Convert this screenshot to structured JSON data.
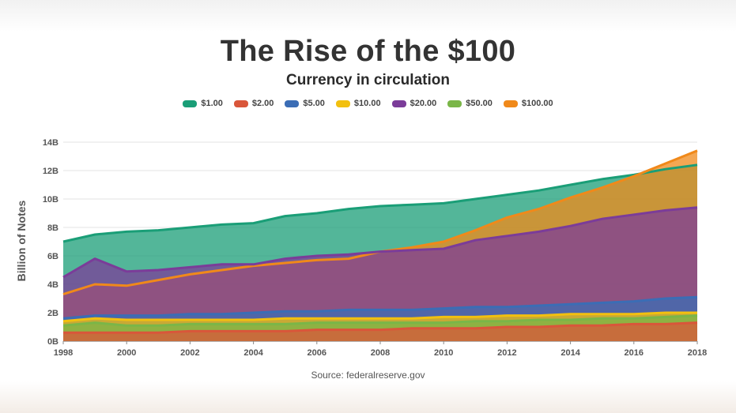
{
  "title": "The Rise of the $100",
  "subtitle": "Currency in circulation",
  "source": "Source: federalreserve.gov",
  "chart_data": {
    "type": "area",
    "ylabel": "Billion of Notes",
    "xlabel": "",
    "ylim": [
      0,
      14
    ],
    "xlim": [
      1998,
      2018
    ],
    "y_ticks": [
      "0B",
      "2B",
      "4B",
      "6B",
      "8B",
      "10B",
      "12B",
      "14B"
    ],
    "x_ticks": [
      "1998",
      "2000",
      "2002",
      "2004",
      "2006",
      "2008",
      "2010",
      "2012",
      "2014",
      "2016",
      "2018"
    ],
    "grid": true,
    "legend_position": "top-center",
    "x": [
      1998,
      1999,
      2000,
      2001,
      2002,
      2003,
      2004,
      2005,
      2006,
      2007,
      2008,
      2009,
      2010,
      2011,
      2012,
      2013,
      2014,
      2015,
      2016,
      2017,
      2018
    ],
    "series": [
      {
        "name": "$1.00",
        "color": "#1a9e77",
        "values": [
          7.0,
          7.5,
          7.7,
          7.8,
          8.0,
          8.2,
          8.3,
          8.8,
          9.0,
          9.3,
          9.5,
          9.6,
          9.7,
          10.0,
          10.3,
          10.6,
          11.0,
          11.4,
          11.7,
          12.1,
          12.4
        ]
      },
      {
        "name": "$2.00",
        "color": "#d9563a",
        "values": [
          0.6,
          0.6,
          0.6,
          0.6,
          0.7,
          0.7,
          0.7,
          0.7,
          0.8,
          0.8,
          0.8,
          0.9,
          0.9,
          0.9,
          1.0,
          1.0,
          1.1,
          1.1,
          1.2,
          1.2,
          1.3
        ]
      },
      {
        "name": "$5.00",
        "color": "#3b6db5",
        "values": [
          1.6,
          1.8,
          1.8,
          1.8,
          1.9,
          1.9,
          2.0,
          2.1,
          2.1,
          2.2,
          2.2,
          2.2,
          2.3,
          2.4,
          2.4,
          2.5,
          2.6,
          2.7,
          2.8,
          3.0,
          3.1
        ]
      },
      {
        "name": "$10.00",
        "color": "#f2c00f",
        "values": [
          1.4,
          1.6,
          1.5,
          1.5,
          1.5,
          1.5,
          1.5,
          1.6,
          1.6,
          1.6,
          1.6,
          1.6,
          1.7,
          1.7,
          1.8,
          1.8,
          1.9,
          1.9,
          1.9,
          2.0,
          2.0
        ]
      },
      {
        "name": "$20.00",
        "color": "#7b3c99",
        "values": [
          4.5,
          5.8,
          4.9,
          5.0,
          5.2,
          5.4,
          5.4,
          5.8,
          6.0,
          6.1,
          6.3,
          6.4,
          6.5,
          7.1,
          7.4,
          7.7,
          8.1,
          8.6,
          8.9,
          9.2,
          9.4
        ]
      },
      {
        "name": "$50.00",
        "color": "#7ab648",
        "values": [
          1.1,
          1.3,
          1.1,
          1.1,
          1.2,
          1.2,
          1.2,
          1.2,
          1.3,
          1.3,
          1.3,
          1.3,
          1.3,
          1.4,
          1.4,
          1.5,
          1.5,
          1.6,
          1.6,
          1.7,
          1.8
        ]
      },
      {
        "name": "$100.00",
        "color": "#f0891a",
        "values": [
          3.3,
          4.0,
          3.9,
          4.3,
          4.7,
          5.0,
          5.3,
          5.5,
          5.7,
          5.8,
          6.3,
          6.6,
          7.0,
          7.8,
          8.7,
          9.3,
          10.1,
          10.8,
          11.6,
          12.5,
          13.4
        ]
      }
    ]
  }
}
